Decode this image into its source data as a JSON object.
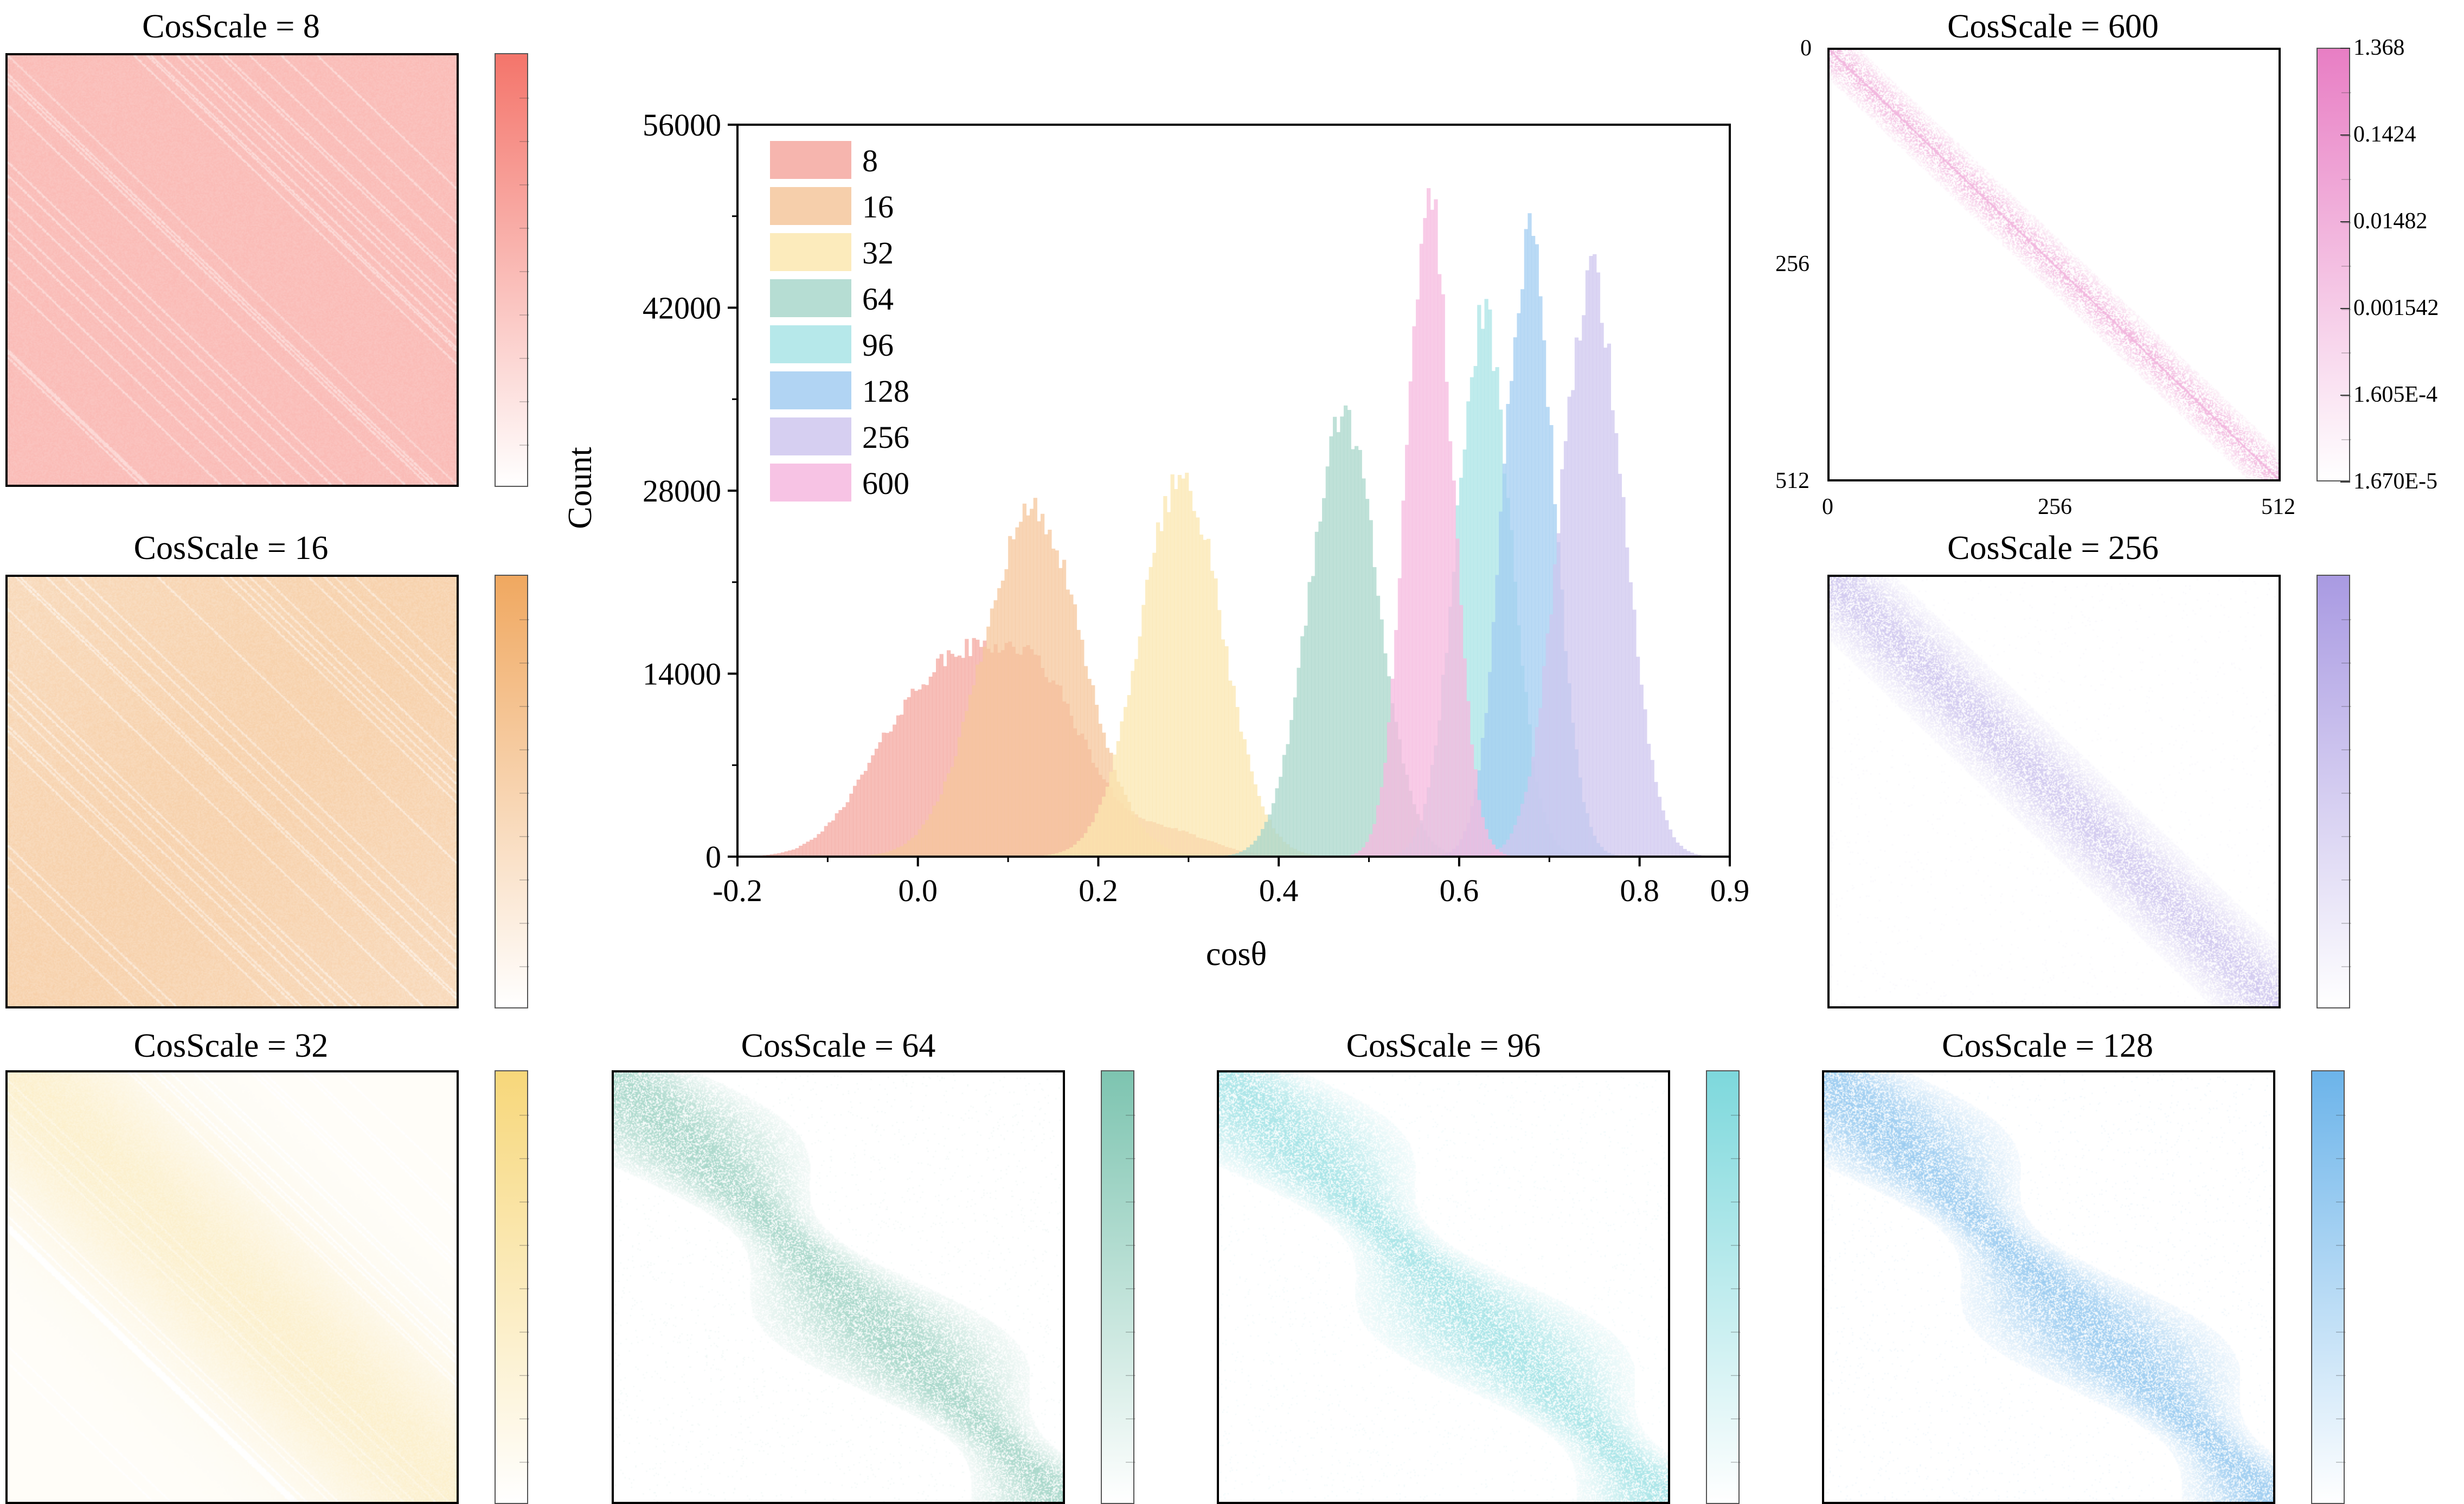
{
  "figure": {
    "heatmaps": [
      {
        "id": "hm8",
        "title": "CosScale = 8",
        "color": "#f4756b",
        "pattern": "dense"
      },
      {
        "id": "hm16",
        "title": "CosScale = 16",
        "color": "#f0a860",
        "pattern": "medium"
      },
      {
        "id": "hm32",
        "title": "CosScale = 32",
        "color": "#f7d77a",
        "pattern": "broad"
      },
      {
        "id": "hm64",
        "title": "CosScale = 64",
        "color": "#7dc4b0",
        "pattern": "band"
      },
      {
        "id": "hm96",
        "title": "CosScale = 96",
        "color": "#7dd8dc",
        "pattern": "band"
      },
      {
        "id": "hm128",
        "title": "CosScale = 128",
        "color": "#6cb4ea",
        "pattern": "band"
      },
      {
        "id": "hm256",
        "title": "CosScale = 256",
        "color": "#a99ae2",
        "pattern": "narrow"
      },
      {
        "id": "hm600",
        "title": "CosScale = 600",
        "color": "#e87ec4",
        "pattern": "thin"
      }
    ],
    "hm600_axes": {
      "y_ticks": [
        "0",
        "256",
        "512"
      ],
      "x_ticks": [
        "0",
        "256",
        "512"
      ],
      "colorbar_ticks": [
        "1.368",
        "0.1424",
        "0.01482",
        "0.001542",
        "1.605E-4",
        "1.670E-5"
      ]
    }
  },
  "chart_data": {
    "type": "bar",
    "subtype": "overlapping histograms",
    "title": "",
    "xlabel": "cosθ",
    "ylabel": "Count",
    "xlim": [
      -0.2,
      0.9
    ],
    "ylim": [
      0,
      56000
    ],
    "xticks": [
      "-0.2",
      "0.0",
      "0.2",
      "0.4",
      "0.6",
      "0.8",
      "0.9"
    ],
    "xtick_values": [
      -0.2,
      0.0,
      0.2,
      0.4,
      0.6,
      0.8,
      0.9
    ],
    "yticks": [
      "0",
      "14000",
      "28000",
      "42000",
      "56000"
    ],
    "ytick_values": [
      0,
      14000,
      28000,
      42000,
      56000
    ],
    "legend_location": "top-left",
    "series": [
      {
        "name": "8",
        "color": "#f4a8a0",
        "components": [
          {
            "mu": 0.05,
            "sigma": 0.055,
            "peak": 12000
          },
          {
            "mu": 0.14,
            "sigma": 0.05,
            "peak": 11000
          },
          {
            "mu": -0.03,
            "sigma": 0.05,
            "peak": 6000
          },
          {
            "mu": 0.27,
            "sigma": 0.05,
            "peak": 2000
          }
        ]
      },
      {
        "name": "16",
        "color": "#f5c79c",
        "components": [
          {
            "mu": 0.125,
            "sigma": 0.055,
            "peak": 26500
          }
        ]
      },
      {
        "name": "32",
        "color": "#fbe7b0",
        "components": [
          {
            "mu": 0.29,
            "sigma": 0.045,
            "peak": 29000
          }
        ]
      },
      {
        "name": "64",
        "color": "#a9d7cb",
        "components": [
          {
            "mu": 0.47,
            "sigma": 0.038,
            "peak": 33500
          }
        ]
      },
      {
        "name": "96",
        "color": "#a9e4e6",
        "components": [
          {
            "mu": 0.625,
            "sigma": 0.03,
            "peak": 41000
          }
        ]
      },
      {
        "name": "128",
        "color": "#a3cdf1",
        "components": [
          {
            "mu": 0.675,
            "sigma": 0.028,
            "peak": 47000
          }
        ]
      },
      {
        "name": "256",
        "color": "#cfc7ef",
        "components": [
          {
            "mu": 0.745,
            "sigma": 0.035,
            "peak": 44500
          }
        ]
      },
      {
        "name": "600",
        "color": "#f6b9df",
        "components": [
          {
            "mu": 0.565,
            "sigma": 0.025,
            "peak": 51000
          }
        ]
      }
    ]
  }
}
